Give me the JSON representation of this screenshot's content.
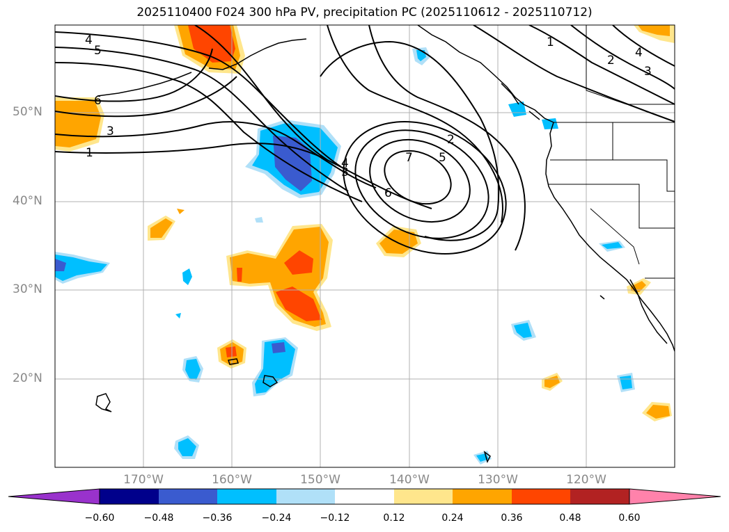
{
  "title": "2025110400 F024 300 hPa PV, precipitation PC (2025110612 - 2025110712)",
  "map": {
    "lon_range": [
      -180,
      -110
    ],
    "lat_range": [
      10,
      60
    ],
    "lat_labels": [
      {
        "value": 50,
        "text": "50°N"
      },
      {
        "value": 40,
        "text": "40°N"
      },
      {
        "value": 30,
        "text": "30°N"
      },
      {
        "value": 20,
        "text": "20°N"
      }
    ],
    "lon_labels": [
      {
        "value": -170,
        "text": "170°W"
      },
      {
        "value": -160,
        "text": "160°W"
      },
      {
        "value": -150,
        "text": "150°W"
      },
      {
        "value": -140,
        "text": "140°W"
      },
      {
        "value": -130,
        "text": "130°W"
      },
      {
        "value": -120,
        "text": "120°W"
      }
    ]
  },
  "pv_contour_labels": [
    "4",
    "5",
    "6",
    "3",
    "1",
    "7",
    "6",
    "5",
    "4",
    "3",
    "2",
    "1",
    "2",
    "3",
    "4"
  ],
  "colorbar": {
    "extend": "both",
    "ticks": [
      "−0.60",
      "−0.48",
      "−0.36",
      "−0.24",
      "−0.12",
      "0.12",
      "0.24",
      "0.36",
      "0.48",
      "0.60"
    ],
    "colors": {
      "under": "#9932cc",
      "neg_060_048": "#00008b",
      "neg_048_036": "#3a5bcf",
      "neg_036_024": "#00bfff",
      "neg_024_012": "#b0e0f8",
      "neutral": "#ffffff",
      "pos_012_024": "#ffe68c",
      "pos_024_036": "#ffa500",
      "pos_036_048": "#ff4500",
      "pos_048_060": "#b22222",
      "over": "#ff82ab"
    }
  }
}
